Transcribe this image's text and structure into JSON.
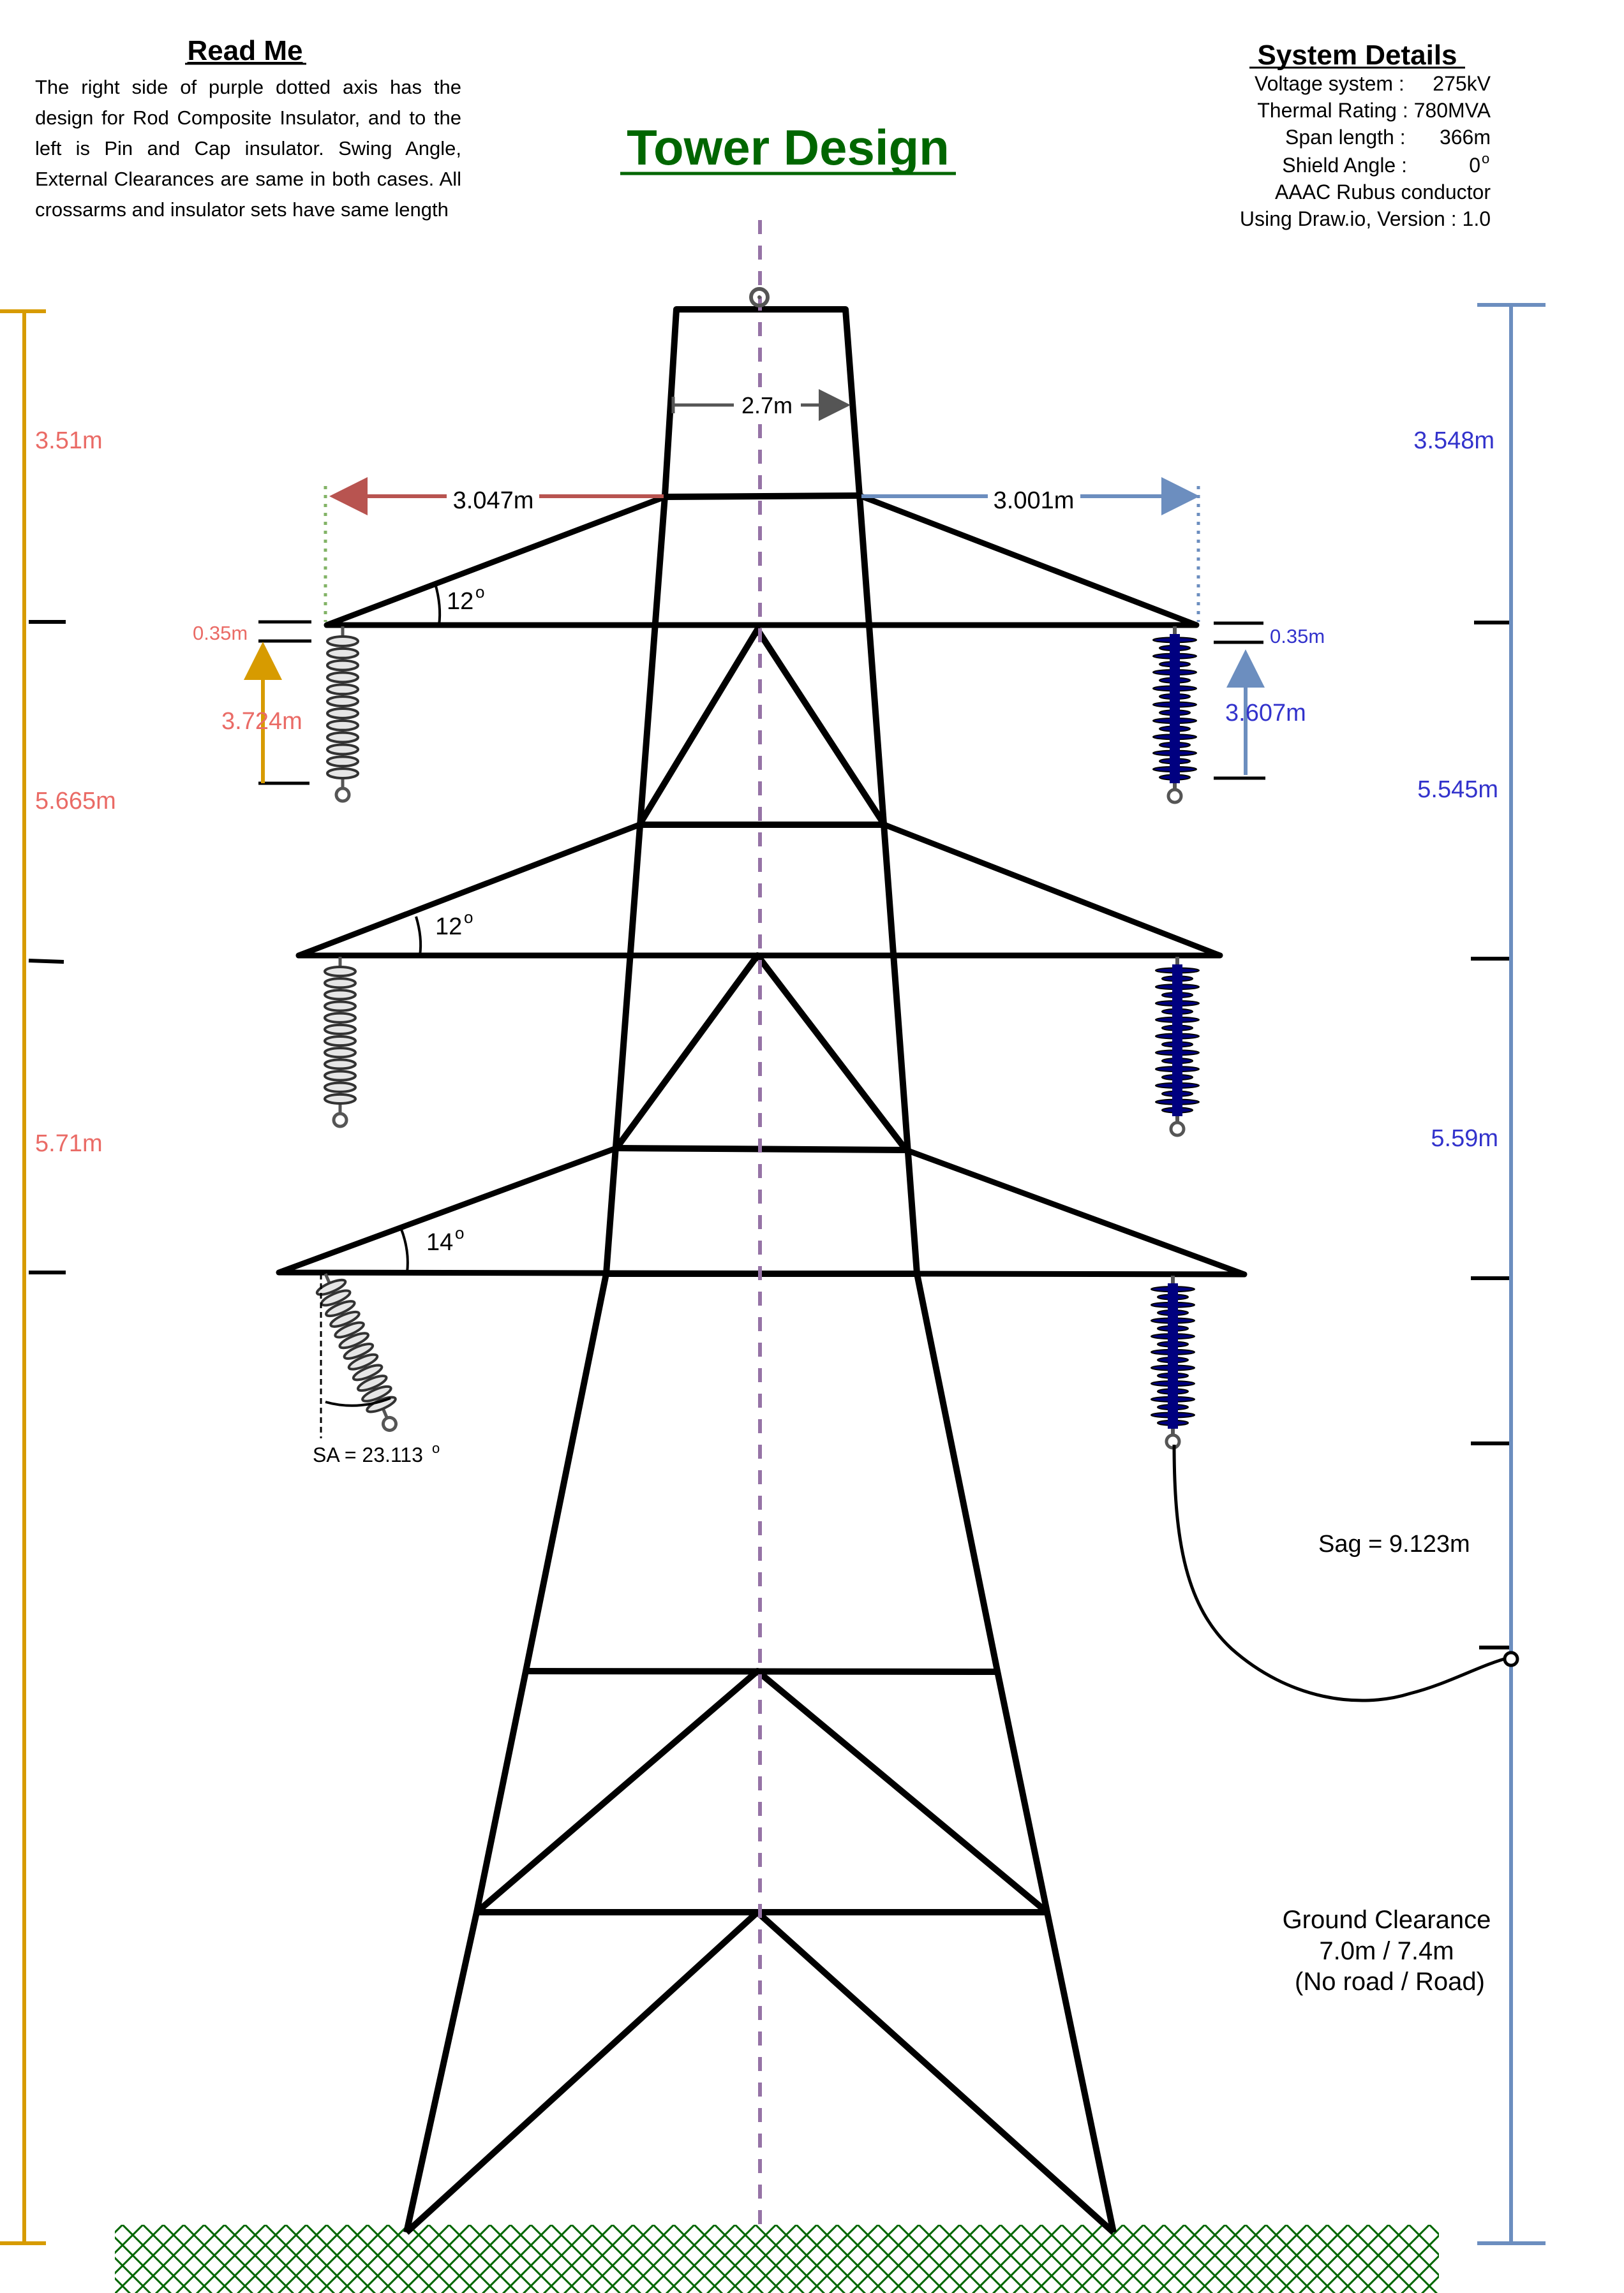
{
  "readme": {
    "heading": "Read Me",
    "body": "The right side of purple dotted axis has the design for Rod Composite Insulator, and to the left is Pin and Cap insulator. Swing Angle, External Clearances are same in both cases. All crossarms and insulator sets have same length"
  },
  "title": "Tower Design",
  "system_details": {
    "heading": "System Details",
    "lines": [
      "Voltage system :     275kV",
      "Thermal Rating : 780MVA",
      "Span length :      366m",
      "AAAC Rubus conductor",
      "Using Draw.io, Version : 1.0"
    ],
    "shield_angle_label": "Shield Angle :",
    "shield_angle_value": "0",
    "shield_angle_sup": "o"
  },
  "dimensions": {
    "tower_top_width": "2.7m",
    "left_arm_length": "3.047m",
    "right_arm_length": "3.001m",
    "angle_top": "12",
    "angle_middle": "12",
    "angle_bottom": "14",
    "degree_sup": "o",
    "left_small_gap": "0.35m",
    "right_small_gap": "0.35m",
    "left_insulator_length": "3.724m",
    "right_insulator_length": "3.607m",
    "swing_angle": "SA = 23.113",
    "sag": "Sag = 9.123m"
  },
  "left_axis": {
    "color": "#d79b00",
    "label_color": "#ea6b66",
    "segments": [
      "3.51m",
      "5.665m",
      "5.71m"
    ]
  },
  "right_axis": {
    "color": "#6c8ebf",
    "label_color": "#3333cc",
    "segments": [
      "3.548m",
      "5.545m",
      "5.59m"
    ]
  },
  "ground_clearance": [
    "Ground Clearance",
    "7.0m / 7.4m",
    "(No road / Road)"
  ],
  "colors": {
    "title": "#006600",
    "center_axis": "#9673a6",
    "left_arrow": "#b85450",
    "right_arrow": "#6c8ebf",
    "ground_hatch": "#006600",
    "composite_insulator": "#000080",
    "left_clearance_dots": "#82b366"
  }
}
